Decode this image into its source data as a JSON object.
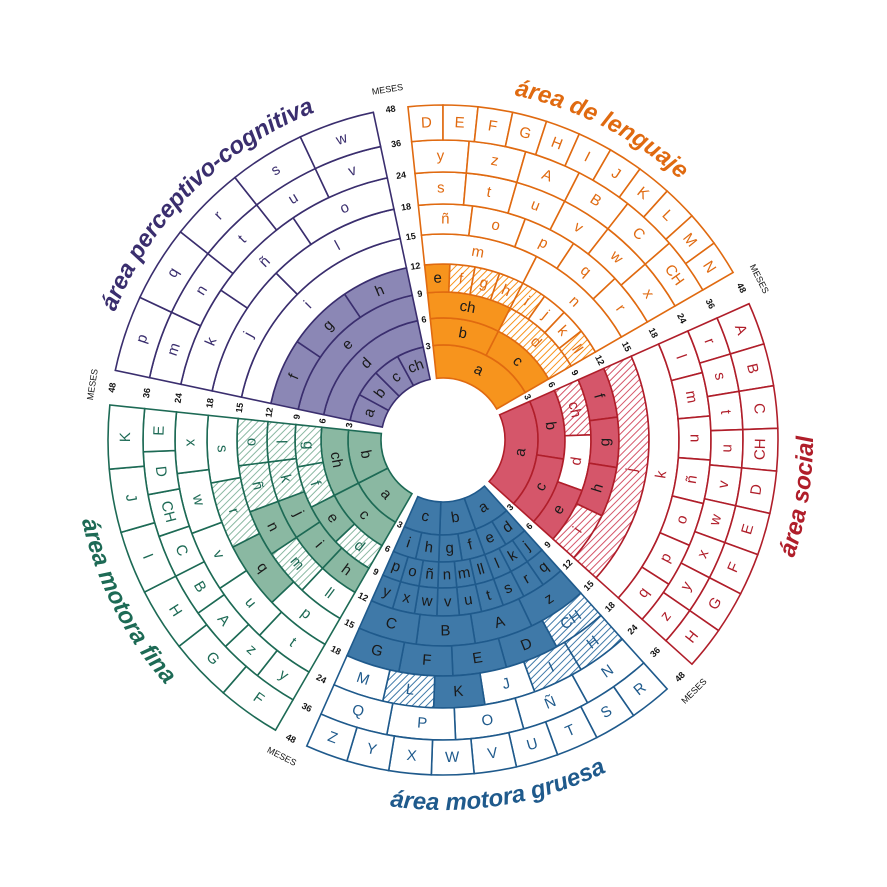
{
  "meses_label": "MESES",
  "month_rings": [
    "3",
    "6",
    "9",
    "12",
    "15",
    "18",
    "24",
    "36",
    "48"
  ],
  "sectors": [
    {
      "id": "perceptivo",
      "title": "área perceptivo-cognitiva",
      "color": "#3a2e6e",
      "fill": "#8b87b5",
      "rings": [
        {
          "cells": [
            {
              "t": "a",
              "s": "f"
            },
            {
              "t": "b",
              "s": "f"
            },
            {
              "t": "c",
              "s": "f"
            },
            {
              "t": "ch",
              "s": "f"
            }
          ]
        },
        {
          "cells": [
            {
              "t": "d",
              "s": "f"
            }
          ]
        },
        {
          "cells": [
            {
              "t": "e",
              "s": "f"
            }
          ]
        },
        {
          "cells": [
            {
              "t": "f",
              "s": "f"
            },
            {
              "t": "g",
              "s": "f"
            },
            {
              "t": "h",
              "s": "f"
            }
          ]
        },
        {
          "cells": [
            {
              "t": "i",
              "s": "w"
            }
          ]
        },
        {
          "cells": [
            {
              "t": "j",
              "s": "w"
            },
            {
              "t": "l",
              "s": "w"
            }
          ]
        },
        {
          "cells": [
            {
              "t": "k",
              "s": "w"
            },
            {
              "t": "ñ",
              "s": "w"
            },
            {
              "t": "o",
              "s": "w"
            }
          ]
        },
        {
          "cells": [
            {
              "t": "m",
              "s": "w"
            },
            {
              "t": "n",
              "s": "w"
            },
            {
              "t": "t",
              "s": "w"
            },
            {
              "t": "u",
              "s": "w"
            },
            {
              "t": "v",
              "s": "w"
            }
          ]
        },
        {
          "cells": [
            {
              "t": "p",
              "s": "w"
            },
            {
              "t": "q",
              "s": "w"
            },
            {
              "t": "r",
              "s": "w"
            },
            {
              "t": "s",
              "s": "w"
            },
            {
              "t": "w",
              "s": "w"
            }
          ]
        }
      ]
    },
    {
      "id": "lenguaje",
      "title": "área de lenguaje",
      "color": "#e06a10",
      "fill": "#f7941d",
      "rings": [
        {
          "cells": [
            {
              "t": "a",
              "s": "f"
            }
          ]
        },
        {
          "cells": [
            {
              "t": "b",
              "s": "f"
            },
            {
              "t": "c",
              "s": "f"
            }
          ]
        },
        {
          "cells": [
            {
              "t": "ch",
              "s": "f"
            },
            {
              "t": "d",
              "s": "h"
            }
          ]
        },
        {
          "cells": [
            {
              "t": "e",
              "s": "f"
            },
            {
              "t": "f",
              "s": "h"
            },
            {
              "t": "g",
              "s": "h"
            },
            {
              "t": "h",
              "s": "h"
            },
            {
              "t": "i",
              "s": "h"
            },
            {
              "t": "j",
              "s": "w"
            },
            {
              "t": "k",
              "s": "w"
            },
            {
              "t": "ll",
              "s": "h"
            }
          ]
        },
        {
          "cells": [
            {
              "t": "m",
              "s": "w"
            },
            {
              "t": "n",
              "s": "w"
            }
          ]
        },
        {
          "cells": [
            {
              "t": "ñ",
              "s": "w"
            },
            {
              "t": "o",
              "s": "w"
            },
            {
              "t": "p",
              "s": "w"
            },
            {
              "t": "q",
              "s": "w"
            },
            {
              "t": "r",
              "s": "w"
            }
          ]
        },
        {
          "cells": [
            {
              "t": "s",
              "s": "w"
            },
            {
              "t": "t",
              "s": "w"
            },
            {
              "t": "u",
              "s": "w"
            },
            {
              "t": "v",
              "s": "w"
            },
            {
              "t": "w",
              "s": "w"
            },
            {
              "t": "x",
              "s": "w"
            }
          ]
        },
        {
          "cells": [
            {
              "t": "y",
              "s": "w"
            },
            {
              "t": "z",
              "s": "w"
            },
            {
              "t": "A",
              "s": "w"
            },
            {
              "t": "B",
              "s": "w"
            },
            {
              "t": "C",
              "s": "w"
            },
            {
              "t": "CH",
              "s": "w"
            }
          ]
        },
        {
          "cells": [
            {
              "t": "D",
              "s": "w"
            },
            {
              "t": "E",
              "s": "w"
            },
            {
              "t": "F",
              "s": "w"
            },
            {
              "t": "G",
              "s": "w"
            },
            {
              "t": "H",
              "s": "w"
            },
            {
              "t": "I",
              "s": "w"
            },
            {
              "t": "J",
              "s": "w"
            },
            {
              "t": "K",
              "s": "w"
            },
            {
              "t": "L",
              "s": "w"
            },
            {
              "t": "M",
              "s": "w"
            },
            {
              "t": "N",
              "s": "w"
            }
          ]
        }
      ]
    },
    {
      "id": "social",
      "title": "área social",
      "color": "#b01e2a",
      "fill": "#d5566a",
      "rings": [
        {
          "cells": [
            {
              "t": "a",
              "s": "f"
            }
          ]
        },
        {
          "cells": [
            {
              "t": "b",
              "s": "f"
            },
            {
              "t": "c",
              "s": "f"
            }
          ]
        },
        {
          "cells": [
            {
              "t": "ch",
              "s": "h"
            },
            {
              "t": "d",
              "s": "w"
            },
            {
              "t": "e",
              "s": "f"
            }
          ]
        },
        {
          "cells": [
            {
              "t": "f",
              "s": "f"
            },
            {
              "t": "g",
              "s": "f"
            },
            {
              "t": "h",
              "s": "f"
            },
            {
              "t": "i",
              "s": "h"
            }
          ]
        },
        {
          "cells": [
            {
              "t": "j",
              "s": "h"
            }
          ]
        },
        {
          "cells": [
            {
              "t": "k",
              "s": "w"
            }
          ]
        },
        {
          "cells": [
            {
              "t": "l",
              "s": "w"
            },
            {
              "t": "m",
              "s": "w"
            },
            {
              "t": "n",
              "s": "w"
            },
            {
              "t": "ñ",
              "s": "w"
            },
            {
              "t": "o",
              "s": "w"
            },
            {
              "t": "p",
              "s": "w"
            },
            {
              "t": "q",
              "s": "w"
            }
          ]
        },
        {
          "cells": [
            {
              "t": "r",
              "s": "w"
            },
            {
              "t": "s",
              "s": "w"
            },
            {
              "t": "t",
              "s": "w"
            },
            {
              "t": "u",
              "s": "w"
            },
            {
              "t": "v",
              "s": "w"
            },
            {
              "t": "w",
              "s": "w"
            },
            {
              "t": "x",
              "s": "w"
            },
            {
              "t": "y",
              "s": "w"
            },
            {
              "t": "z",
              "s": "w"
            }
          ]
        },
        {
          "cells": [
            {
              "t": "A",
              "s": "w"
            },
            {
              "t": "B",
              "s": "w"
            },
            {
              "t": "C",
              "s": "w"
            },
            {
              "t": "CH",
              "s": "w"
            },
            {
              "t": "D",
              "s": "w"
            },
            {
              "t": "E",
              "s": "w"
            },
            {
              "t": "F",
              "s": "w"
            },
            {
              "t": "G",
              "s": "w"
            },
            {
              "t": "H",
              "s": "w"
            }
          ]
        }
      ]
    },
    {
      "id": "motora-gruesa",
      "title": "área motora gruesa",
      "color": "#1f5a8c",
      "fill": "#3f79a8",
      "rings": [
        {
          "cells": [
            {
              "t": "a",
              "s": "f"
            },
            {
              "t": "b",
              "s": "f"
            },
            {
              "t": "c",
              "s": "f"
            }
          ]
        },
        {
          "cells": [
            {
              "t": "d",
              "s": "f"
            },
            {
              "t": "e",
              "s": "f"
            },
            {
              "t": "f",
              "s": "f"
            },
            {
              "t": "g",
              "s": "f"
            },
            {
              "t": "h",
              "s": "f"
            },
            {
              "t": "i",
              "s": "f"
            }
          ]
        },
        {
          "cells": [
            {
              "t": "j",
              "s": "f"
            },
            {
              "t": "k",
              "s": "f"
            },
            {
              "t": "l",
              "s": "f"
            },
            {
              "t": "ll",
              "s": "f"
            },
            {
              "t": "m",
              "s": "f"
            },
            {
              "t": "n",
              "s": "f"
            },
            {
              "t": "ñ",
              "s": "f"
            },
            {
              "t": "o",
              "s": "f"
            },
            {
              "t": "p",
              "s": "f"
            }
          ]
        },
        {
          "cells": [
            {
              "t": "q",
              "s": "f"
            },
            {
              "t": "r",
              "s": "f"
            },
            {
              "t": "s",
              "s": "f"
            },
            {
              "t": "t",
              "s": "f"
            },
            {
              "t": "u",
              "s": "f"
            },
            {
              "t": "v",
              "s": "f"
            },
            {
              "t": "w",
              "s": "f"
            },
            {
              "t": "x",
              "s": "f"
            },
            {
              "t": "y",
              "s": "f"
            }
          ]
        },
        {
          "cells": [
            {
              "t": "z",
              "s": "f"
            },
            {
              "t": "A",
              "s": "f"
            },
            {
              "t": "B",
              "s": "f"
            },
            {
              "t": "C",
              "s": "f"
            }
          ]
        },
        {
          "cells": [
            {
              "t": "CH",
              "s": "h"
            },
            {
              "t": "D",
              "s": "f"
            },
            {
              "t": "E",
              "s": "f"
            },
            {
              "t": "F",
              "s": "f"
            },
            {
              "t": "G",
              "s": "f"
            }
          ]
        },
        {
          "cells": [
            {
              "t": "H",
              "s": "h"
            },
            {
              "t": "I",
              "s": "h"
            },
            {
              "t": "J",
              "s": "w"
            },
            {
              "t": "K",
              "s": "f"
            },
            {
              "t": "L",
              "s": "h"
            },
            {
              "t": "M",
              "s": "w"
            }
          ]
        },
        {
          "cells": [
            {
              "t": "N",
              "s": "w"
            },
            {
              "t": "Ñ",
              "s": "w"
            },
            {
              "t": "O",
              "s": "w"
            },
            {
              "t": "P",
              "s": "w"
            },
            {
              "t": "Q",
              "s": "w"
            }
          ]
        },
        {
          "cells": [
            {
              "t": "R",
              "s": "w"
            },
            {
              "t": "S",
              "s": "w"
            },
            {
              "t": "T",
              "s": "w"
            },
            {
              "t": "U",
              "s": "w"
            },
            {
              "t": "V",
              "s": "w"
            },
            {
              "t": "W",
              "s": "w"
            },
            {
              "t": "X",
              "s": "w"
            },
            {
              "t": "Y",
              "s": "w"
            },
            {
              "t": "Z",
              "s": "w"
            }
          ]
        }
      ]
    },
    {
      "id": "motora-fina",
      "title": "área motora fina",
      "color": "#1d6a55",
      "fill": "#8ab8a2",
      "rings": [
        {
          "cells": [
            {
              "t": "a",
              "s": "f"
            },
            {
              "t": "b",
              "s": "f"
            }
          ]
        },
        {
          "cells": [
            {
              "t": "c",
              "s": "f"
            },
            {
              "t": "ch",
              "s": "f"
            }
          ]
        },
        {
          "cells": [
            {
              "t": "d",
              "s": "h"
            },
            {
              "t": "e",
              "s": "f"
            },
            {
              "t": "f",
              "s": "h"
            },
            {
              "t": "g",
              "s": "h"
            }
          ]
        },
        {
          "cells": [
            {
              "t": "h",
              "s": "f"
            },
            {
              "t": "i",
              "s": "f"
            },
            {
              "t": "j",
              "s": "f"
            },
            {
              "t": "k",
              "s": "h"
            },
            {
              "t": "l",
              "s": "h"
            }
          ]
        },
        {
          "cells": [
            {
              "t": "ll",
              "s": "w"
            },
            {
              "t": "m",
              "s": "h"
            },
            {
              "t": "n",
              "s": "f"
            },
            {
              "t": "ñ",
              "s": "h"
            },
            {
              "t": "o",
              "s": "h"
            }
          ]
        },
        {
          "cells": [
            {
              "t": "p",
              "s": "w"
            },
            {
              "t": "q",
              "s": "f"
            },
            {
              "t": "r",
              "s": "h"
            },
            {
              "t": "s",
              "s": "w"
            }
          ]
        },
        {
          "cells": [
            {
              "t": "t",
              "s": "w"
            },
            {
              "t": "u",
              "s": "w"
            },
            {
              "t": "v",
              "s": "w"
            },
            {
              "t": "w",
              "s": "w"
            },
            {
              "t": "x",
              "s": "w"
            }
          ]
        },
        {
          "cells": [
            {
              "t": "y",
              "s": "w"
            },
            {
              "t": "z",
              "s": "w"
            },
            {
              "t": "A",
              "s": "w"
            },
            {
              "t": "B",
              "s": "w"
            },
            {
              "t": "C",
              "s": "w"
            },
            {
              "t": "CH",
              "s": "w"
            },
            {
              "t": "D",
              "s": "w"
            },
            {
              "t": "E",
              "s": "w"
            }
          ]
        },
        {
          "cells": [
            {
              "t": "F",
              "s": "w"
            },
            {
              "t": "G",
              "s": "w"
            },
            {
              "t": "H",
              "s": "w"
            },
            {
              "t": "I",
              "s": "w"
            },
            {
              "t": "J",
              "s": "w"
            },
            {
              "t": "K",
              "s": "w"
            }
          ]
        }
      ]
    }
  ]
}
